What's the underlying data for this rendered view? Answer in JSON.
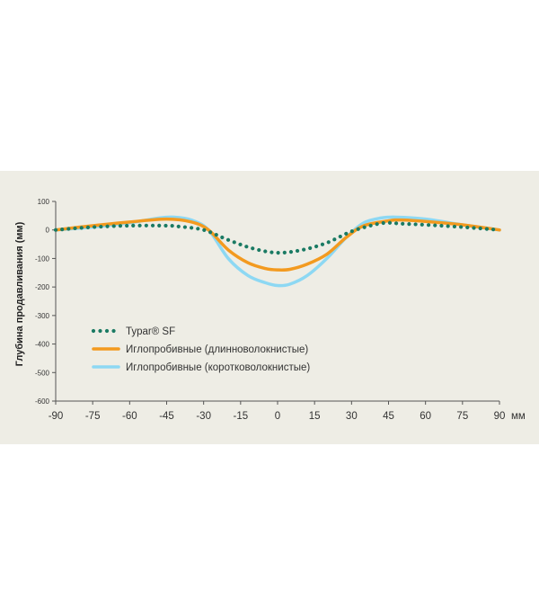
{
  "chart_data": {
    "type": "line",
    "ylabel": "Глубина продавливания (мм)",
    "x_unit": "мм",
    "x_ticks": [
      -90,
      -75,
      -60,
      -45,
      -30,
      -15,
      0,
      15,
      30,
      45,
      60,
      75,
      90
    ],
    "y_ticks": [
      100,
      0,
      -100,
      -200,
      -300,
      -400,
      -500,
      -600
    ],
    "xlim": [
      -90,
      90
    ],
    "ylim": [
      -600,
      100
    ],
    "grid": false,
    "legend_position": "inside-bottom-left",
    "series": [
      {
        "name": "Typar® SF",
        "style": "dotted",
        "color": "#1a7a63",
        "x": [
          -90,
          -75,
          -60,
          -45,
          -40,
          -30,
          -20,
          -10,
          0,
          10,
          20,
          30,
          40,
          45,
          50,
          60,
          75,
          90
        ],
        "y": [
          0,
          10,
          15,
          15,
          12,
          0,
          -35,
          -65,
          -80,
          -70,
          -45,
          -5,
          20,
          25,
          22,
          18,
          10,
          0
        ]
      },
      {
        "name": "Иглопробивные (длинноволокнистые)",
        "style": "solid",
        "color": "#f39a1f",
        "x": [
          -90,
          -75,
          -60,
          -45,
          -35,
          -28,
          -20,
          -12,
          -5,
          0,
          5,
          12,
          20,
          28,
          35,
          45,
          50,
          60,
          75,
          90
        ],
        "y": [
          0,
          15,
          28,
          38,
          28,
          0,
          -70,
          -115,
          -135,
          -140,
          -138,
          -120,
          -85,
          -25,
          15,
          32,
          35,
          30,
          18,
          0
        ]
      },
      {
        "name": "Иглопробивные (коротковолокнистые)",
        "style": "solid",
        "color": "#8dd8f3",
        "x": [
          -90,
          -75,
          -60,
          -48,
          -42,
          -35,
          -28,
          -20,
          -12,
          -5,
          0,
          5,
          12,
          20,
          28,
          35,
          42,
          48,
          60,
          75,
          90
        ],
        "y": [
          0,
          10,
          25,
          42,
          45,
          35,
          0,
          -100,
          -160,
          -185,
          -195,
          -190,
          -160,
          -100,
          -25,
          25,
          42,
          45,
          38,
          18,
          0
        ]
      }
    ]
  }
}
